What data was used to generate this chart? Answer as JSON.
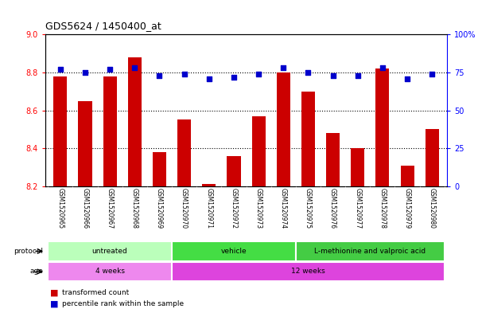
{
  "title": "GDS5624 / 1450400_at",
  "samples": [
    "GSM1520965",
    "GSM1520966",
    "GSM1520967",
    "GSM1520968",
    "GSM1520969",
    "GSM1520970",
    "GSM1520971",
    "GSM1520972",
    "GSM1520973",
    "GSM1520974",
    "GSM1520975",
    "GSM1520976",
    "GSM1520977",
    "GSM1520978",
    "GSM1520979",
    "GSM1520980"
  ],
  "transformed_count": [
    8.78,
    8.65,
    8.78,
    8.88,
    8.38,
    8.55,
    8.21,
    8.36,
    8.57,
    8.8,
    8.7,
    8.48,
    8.4,
    8.82,
    8.31,
    8.5
  ],
  "percentile_rank": [
    77,
    75,
    77,
    78,
    73,
    74,
    71,
    72,
    74,
    78,
    75,
    73,
    73,
    78,
    71,
    74
  ],
  "ylim_left": [
    8.2,
    9.0
  ],
  "ylim_right": [
    0,
    100
  ],
  "yticks_left": [
    8.2,
    8.4,
    8.6,
    8.8,
    9.0
  ],
  "yticks_right": [
    0,
    25,
    50,
    75,
    100
  ],
  "ytick_labels_right": [
    "0",
    "25",
    "50",
    "75",
    "100%"
  ],
  "bar_color": "#cc0000",
  "dot_color": "#0000cc",
  "protocol_groups": [
    {
      "label": "untreated",
      "start": 0,
      "end": 4,
      "color": "#bbffbb"
    },
    {
      "label": "vehicle",
      "start": 5,
      "end": 9,
      "color": "#44dd44"
    },
    {
      "label": "L-methionine and valproic acid",
      "start": 10,
      "end": 15,
      "color": "#44cc44"
    }
  ],
  "age_groups": [
    {
      "label": "4 weeks",
      "start": 0,
      "end": 4,
      "color": "#ee88ee"
    },
    {
      "label": "12 weeks",
      "start": 5,
      "end": 15,
      "color": "#dd44dd"
    }
  ],
  "tick_area_color": "#cccccc",
  "bg_color": "#ffffff"
}
